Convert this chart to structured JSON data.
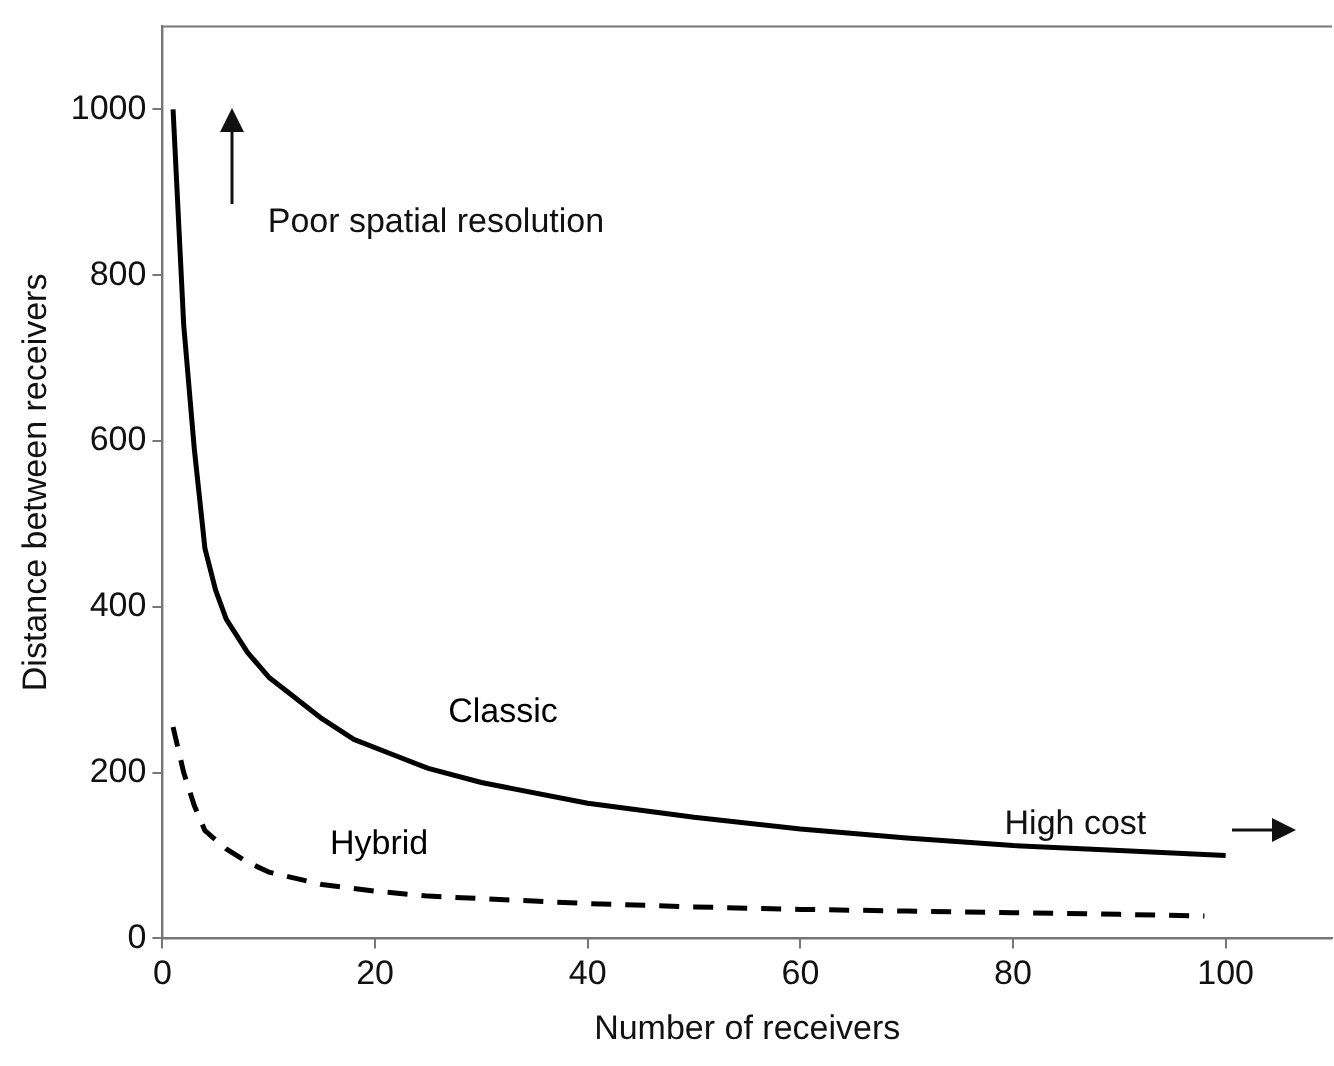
{
  "chart_data": {
    "type": "line",
    "xlabel": "Number of receivers",
    "ylabel": "Distance between receivers",
    "xlim": [
      0,
      110
    ],
    "ylim": [
      0,
      1100
    ],
    "xticks": [
      0,
      20,
      40,
      60,
      80,
      100
    ],
    "yticks": [
      0,
      200,
      400,
      600,
      800,
      1000
    ],
    "grid": false,
    "legend": false,
    "marker": "none",
    "annotations": [
      "Poor spatial resolution",
      "High cost"
    ],
    "series": [
      {
        "name": "Classic",
        "color": "#000000",
        "line_style": "solid",
        "x": [
          1,
          2,
          3,
          4,
          5,
          6,
          8,
          10,
          12,
          15,
          18,
          22,
          25,
          30,
          40,
          50,
          60,
          70,
          80,
          90,
          100
        ],
        "values": [
          1000,
          740,
          590,
          470,
          420,
          385,
          345,
          315,
          295,
          265,
          240,
          220,
          205,
          188,
          163,
          146,
          132,
          121,
          112,
          106,
          100
        ]
      },
      {
        "name": "Hybrid",
        "color": "#000000",
        "line_style": "dashed",
        "x": [
          1,
          2,
          3,
          4,
          6,
          8,
          10,
          15,
          20,
          25,
          30,
          40,
          50,
          60,
          70,
          80,
          90,
          98
        ],
        "values": [
          255,
          200,
          160,
          130,
          108,
          92,
          80,
          65,
          57,
          51,
          48,
          42,
          38,
          35,
          33,
          31,
          29,
          27
        ]
      }
    ]
  }
}
